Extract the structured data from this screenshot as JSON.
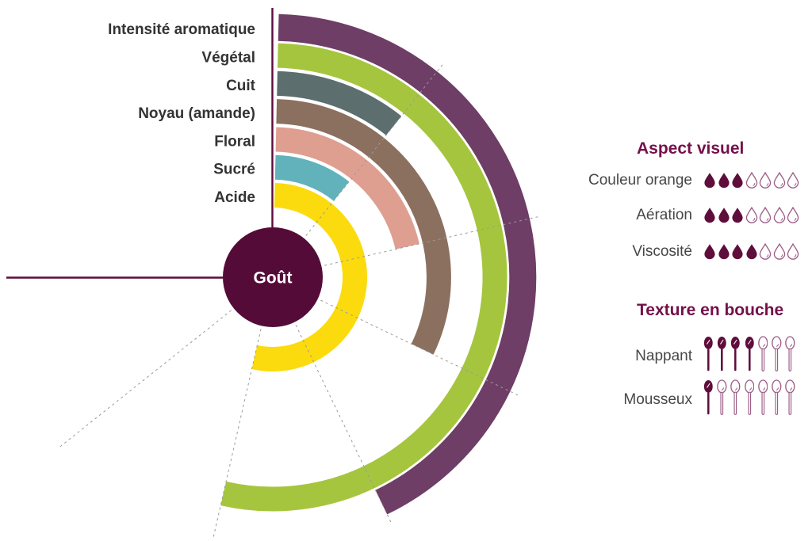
{
  "chart_data": {
    "type": "radial-bar",
    "center_label": "Goût",
    "categories": [
      "Intensité aromatique",
      "Végétal",
      "Cuit",
      "Noyau (amande)",
      "Floral",
      "Sucré",
      "Acide"
    ],
    "values": [
      4,
      5,
      1,
      3,
      2,
      1,
      5
    ],
    "ring_colors": [
      "#6e3e66",
      "#a6c53e",
      "#5c6e6e",
      "#8b7060",
      "#de9f90",
      "#62b2bc",
      "#fbdb0e"
    ],
    "ring_order": "outermost-to-innermost",
    "scale": {
      "min": 0,
      "max": 7,
      "full_sweep_deg": 270,
      "start_angle": "12-o-clock",
      "direction": "clockwise",
      "gridline_units": [
        1,
        2,
        3,
        4,
        5,
        6
      ]
    },
    "legend_position": "left"
  },
  "panel": {
    "sections": [
      {
        "title": "Aspect visuel",
        "icon": "drop-icon",
        "rows": [
          {
            "label": "Couleur orange",
            "filled": 3,
            "total": 7
          },
          {
            "label": "Aération",
            "filled": 3,
            "total": 7
          },
          {
            "label": "Viscosité",
            "filled": 4,
            "total": 7
          }
        ]
      },
      {
        "title": "Texture en bouche",
        "icon": "spoon-icon",
        "rows": [
          {
            "label": "Nappant",
            "filled": 4,
            "total": 7
          },
          {
            "label": "Mousseux",
            "filled": 1,
            "total": 7
          }
        ]
      }
    ]
  },
  "colors": {
    "accent_dark": "#550b38",
    "axis_line": "#5c0c3c",
    "heading": "#75104a",
    "ring_label_text": "#333333",
    "row_label_text": "#474747",
    "icon_filled": "#5f0d3b",
    "icon_outline": "#9c5e86",
    "gridline": "#9a9a9a",
    "center_text": "#ffffff"
  }
}
